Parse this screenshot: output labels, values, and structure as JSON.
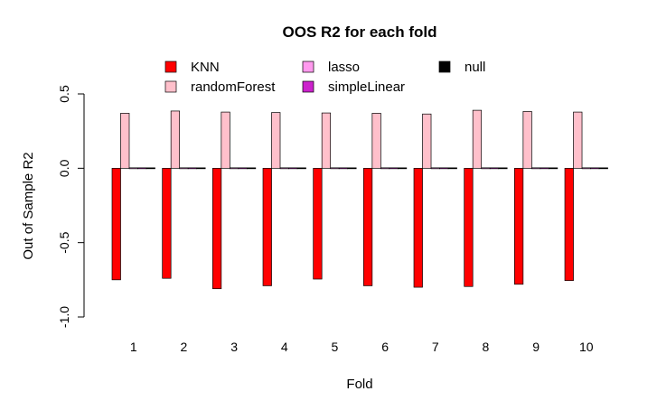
{
  "chart_data": {
    "type": "bar",
    "title": "OOS R2 for each fold",
    "xlabel": "Fold",
    "ylabel": "Out of Sample R2",
    "categories": [
      "1",
      "2",
      "3",
      "4",
      "5",
      "6",
      "7",
      "8",
      "9",
      "10"
    ],
    "yticks": [
      "0.5",
      "0.0",
      "-0.5",
      "-1.0"
    ],
    "ylim": [
      -1.0,
      0.5
    ],
    "legend_position": "top",
    "grid": false,
    "series": [
      {
        "name": "KNN",
        "color": "#ff0000",
        "values": [
          -0.75,
          -0.74,
          -0.81,
          -0.79,
          -0.745,
          -0.79,
          -0.8,
          -0.795,
          -0.78,
          -0.755
        ]
      },
      {
        "name": "randomForest",
        "color": "#ffc0cb",
        "values": [
          0.37,
          0.385,
          0.378,
          0.375,
          0.372,
          0.37,
          0.365,
          0.39,
          0.382,
          0.378
        ]
      },
      {
        "name": "lasso",
        "color": "#ff99ee",
        "values": [
          0.004,
          0.004,
          0.004,
          0.003,
          0.004,
          0.005,
          0.004,
          0.005,
          0.003,
          0.004
        ]
      },
      {
        "name": "simpleLinear",
        "color": "#cc22cc",
        "values": [
          0.005,
          0.004,
          0.004,
          0.003,
          0.004,
          0.006,
          0.004,
          0.006,
          0.003,
          0.005
        ]
      },
      {
        "name": "null",
        "color": "#000000",
        "values": [
          0.0,
          0.0,
          0.0,
          0.0,
          0.0,
          0.0,
          0.0,
          0.0,
          0.0,
          0.0
        ]
      }
    ]
  }
}
